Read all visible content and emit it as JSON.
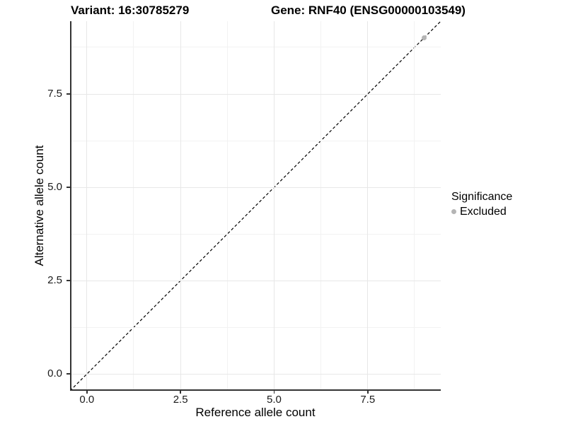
{
  "titles": {
    "variant": "Variant: 16:30785279",
    "gene": "Gene: RNF40 (ENSG00000103549)"
  },
  "chart_data": {
    "type": "scatter",
    "xlabel": "Reference allele count",
    "ylabel": "Alternative allele count",
    "xlim": [
      -0.45,
      9.45
    ],
    "ylim": [
      -0.45,
      9.45
    ],
    "x_ticks": [
      0.0,
      2.5,
      5.0,
      7.5
    ],
    "y_ticks": [
      0.0,
      2.5,
      5.0,
      7.5
    ],
    "x_tick_labels": [
      "0.0",
      "2.5",
      "5.0",
      "7.5"
    ],
    "y_tick_labels": [
      "0.0",
      "2.5",
      "5.0",
      "7.5"
    ],
    "x_minor_ticks": [
      1.25,
      3.75,
      6.25,
      8.75
    ],
    "y_minor_ticks": [
      1.25,
      3.75,
      6.25,
      8.75
    ],
    "grid": "on",
    "reference_line": {
      "type": "identity",
      "style": "dashed",
      "x0": -0.45,
      "y0": -0.45,
      "x1": 9.45,
      "y1": 9.45,
      "color": "#000000"
    },
    "series": [
      {
        "name": "Excluded",
        "color": "#b5b5b5",
        "marker": "circle",
        "points": [
          {
            "x": 9,
            "y": 9
          }
        ]
      }
    ],
    "legend": {
      "title": "Significance",
      "position": "right",
      "items": [
        {
          "label": "Excluded",
          "color": "#b5b5b5",
          "marker": "circle"
        }
      ]
    }
  },
  "colors": {
    "background": "#ffffff",
    "grid_major": "#e7e7e7",
    "grid_minor": "#f2f2f2",
    "axis_line": "#333333",
    "text": "#000000",
    "point": "#b5b5b5"
  }
}
